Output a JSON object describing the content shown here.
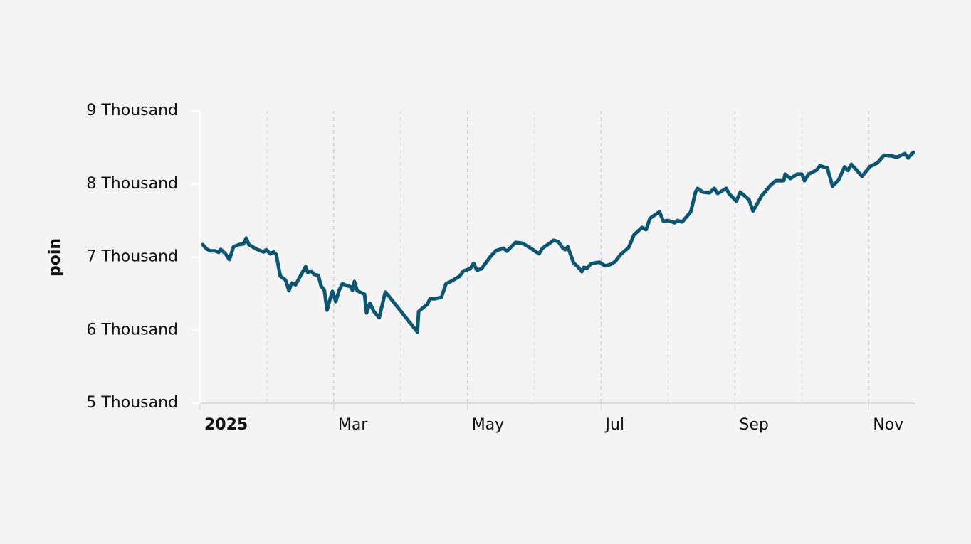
{
  "chart_data": {
    "type": "line",
    "y_label": "poin",
    "x": [
      2.04,
      2.1,
      2.15,
      2.23,
      2.28,
      2.31,
      2.38,
      2.44,
      2.5,
      2.58,
      2.65,
      2.69,
      2.73,
      2.84,
      2.95,
      2.99,
      3.05,
      3.1,
      3.14,
      3.2,
      3.28,
      3.33,
      3.37,
      3.43,
      3.5,
      3.58,
      3.61,
      3.66,
      3.71,
      3.77,
      3.81,
      3.86,
      3.9,
      3.94,
      3.98,
      4.03,
      4.08,
      4.13,
      4.18,
      4.25,
      4.28,
      4.31,
      4.35,
      4.46,
      4.49,
      4.54,
      4.6,
      4.68,
      4.77,
      4.82,
      5.22,
      5.25,
      5.27,
      5.4,
      5.44,
      5.52,
      5.61,
      5.68,
      5.75,
      5.88,
      5.94,
      6.04,
      6.09,
      6.14,
      6.21,
      6.35,
      6.43,
      6.54,
      6.59,
      6.72,
      6.82,
      6.93,
      7.07,
      7.12,
      7.29,
      7.36,
      7.41,
      7.46,
      7.5,
      7.59,
      7.65,
      7.71,
      7.74,
      7.79,
      7.85,
      7.97,
      8.06,
      8.14,
      8.21,
      8.29,
      8.41,
      8.49,
      8.61,
      8.67,
      8.73,
      8.87,
      8.93,
      9.0,
      9.1,
      9.14,
      9.21,
      9.34,
      9.41,
      9.44,
      9.52,
      9.62,
      9.69,
      9.74,
      9.87,
      9.91,
      10.02,
      10.08,
      10.21,
      10.27,
      10.4,
      10.53,
      10.61,
      10.73,
      10.75,
      10.83,
      10.93,
      11.0,
      11.04,
      11.1,
      11.22,
      11.27,
      11.38,
      11.46,
      11.55,
      11.64,
      11.69,
      11.74,
      11.82,
      11.9,
      12.02,
      12.13,
      12.23,
      12.34,
      12.42,
      12.54,
      12.59,
      12.67
    ],
    "series": [
      {
        "name": "poin",
        "color": "#0b5670",
        "values": [
          7170,
          7110,
          7085,
          7085,
          7065,
          7105,
          7045,
          6965,
          7140,
          7170,
          7180,
          7260,
          7170,
          7110,
          7070,
          7100,
          7045,
          7070,
          7035,
          6740,
          6685,
          6540,
          6645,
          6620,
          6740,
          6870,
          6790,
          6810,
          6760,
          6750,
          6605,
          6545,
          6275,
          6410,
          6530,
          6390,
          6545,
          6635,
          6615,
          6595,
          6545,
          6665,
          6540,
          6490,
          6235,
          6370,
          6255,
          6170,
          6520,
          6470,
          6010,
          5975,
          6255,
          6355,
          6430,
          6430,
          6450,
          6635,
          6665,
          6735,
          6810,
          6840,
          6915,
          6820,
          6840,
          7015,
          7090,
          7120,
          7080,
          7200,
          7190,
          7130,
          7045,
          7120,
          7230,
          7210,
          7140,
          7100,
          7140,
          6915,
          6870,
          6800,
          6860,
          6850,
          6910,
          6930,
          6880,
          6900,
          6940,
          7035,
          7130,
          7305,
          7405,
          7375,
          7530,
          7620,
          7490,
          7500,
          7470,
          7500,
          7480,
          7620,
          7890,
          7940,
          7890,
          7880,
          7940,
          7870,
          7940,
          7870,
          7765,
          7890,
          7785,
          7630,
          7840,
          7980,
          8045,
          8045,
          8135,
          8075,
          8135,
          8135,
          8045,
          8135,
          8190,
          8250,
          8220,
          7970,
          8055,
          8235,
          8185,
          8270,
          8190,
          8105,
          8240,
          8290,
          8395,
          8385,
          8365,
          8415,
          8355,
          8435
        ]
      }
    ],
    "xlim": [
      2,
      12.7
    ],
    "xticks": [
      {
        "value": 2,
        "label": "2025"
      },
      {
        "value": 4,
        "label": "Mar"
      },
      {
        "value": 6,
        "label": "May"
      },
      {
        "value": 8,
        "label": "Jul"
      },
      {
        "value": 10,
        "label": "Sep"
      },
      {
        "value": 12,
        "label": "Nov"
      }
    ],
    "ylim": [
      5000,
      9000
    ],
    "yticks": [
      {
        "value": 5000,
        "label": "5 Thousand"
      },
      {
        "value": 6000,
        "label": "6 Thousand"
      },
      {
        "value": 7000,
        "label": "7 Thousand"
      },
      {
        "value": 8000,
        "label": "8 Thousand"
      },
      {
        "value": 9000,
        "label": "9 Thousand"
      }
    ],
    "grid": true
  }
}
